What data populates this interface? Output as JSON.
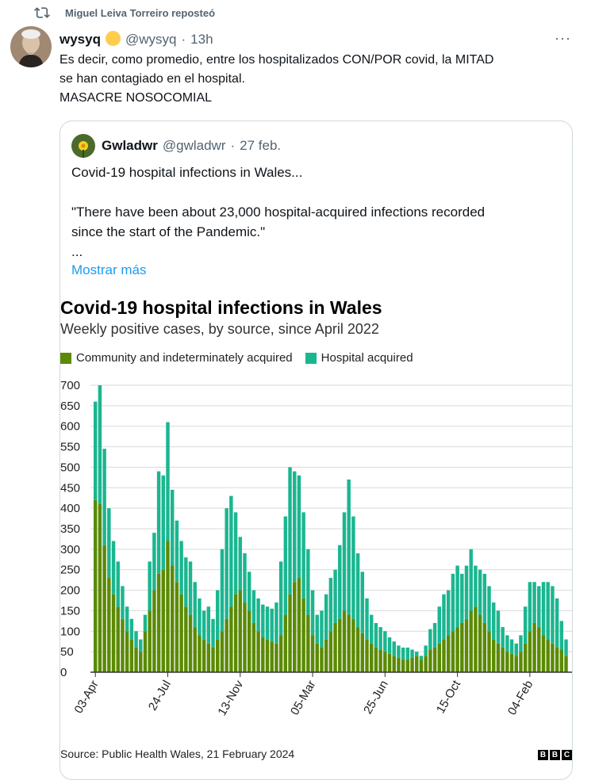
{
  "repost": {
    "text": "Miguel Leiva Torreiro reposteó"
  },
  "tweet": {
    "display_name": "wysyq",
    "handle": "@wysyq",
    "dot": "·",
    "time": "13h",
    "more": "···",
    "lines": [
      "Es decir, como promedio, entre los hospitalizados CON/POR covid, la MITAD",
      "se han contagiado en el hospital.",
      "MASACRE NOSOCOMIAL"
    ]
  },
  "quote": {
    "display_name": "Gwladwr",
    "handle": "@gwladwr",
    "dot": "·",
    "time": "27 feb.",
    "p1": "Covid-19 hospital infections in Wales...",
    "p2_line1": "\"There have been about 23,000 hospital-acquired infections recorded",
    "p2_line2": "since the start of the Pandemic.\"",
    "ellipsis": "...",
    "show_more": "Mostrar más"
  },
  "colors": {
    "community": "#5b8a04",
    "hospital": "#1ab690",
    "link": "#1d9bf0"
  },
  "chart_data": {
    "type": "bar",
    "stacked": true,
    "title": "Covid-19 hospital infections in Wales",
    "subtitle": "Weekly positive cases, by source, since April 2022",
    "legend": [
      "Community and indeterminately acquired",
      "Hospital acquired"
    ],
    "y_ticks": [
      0,
      50,
      100,
      150,
      200,
      250,
      300,
      350,
      400,
      450,
      500,
      550,
      600,
      650,
      700
    ],
    "ylim": [
      0,
      700
    ],
    "x_tick_labels": [
      "03-Apr",
      "24-Jul",
      "13-Nov",
      "05-Mar",
      "25-Jun",
      "15-Oct",
      "04-Feb"
    ],
    "x_tick_indices": [
      0,
      16,
      32,
      48,
      64,
      80,
      96
    ],
    "source": "Source: Public Health Wales, 21 February 2024",
    "credit": "BBC",
    "series": [
      {
        "name": "Community and indeterminately acquired",
        "values": [
          420,
          410,
          310,
          230,
          190,
          160,
          130,
          100,
          80,
          60,
          50,
          100,
          150,
          200,
          240,
          250,
          320,
          260,
          220,
          190,
          160,
          140,
          110,
          90,
          80,
          70,
          60,
          80,
          100,
          130,
          160,
          190,
          200,
          170,
          150,
          120,
          100,
          85,
          80,
          75,
          70,
          90,
          140,
          190,
          220,
          230,
          180,
          140,
          90,
          70,
          60,
          80,
          100,
          120,
          130,
          150,
          140,
          130,
          110,
          95,
          80,
          70,
          60,
          55,
          50,
          45,
          40,
          35,
          30,
          30,
          35,
          40,
          30,
          40,
          55,
          60,
          70,
          80,
          90,
          100,
          110,
          120,
          130,
          150,
          160,
          140,
          120,
          100,
          80,
          70,
          60,
          50,
          45,
          40,
          50,
          70,
          100,
          120,
          110,
          90,
          80,
          70,
          60,
          55,
          40
        ],
        "_note": "approximate"
      },
      {
        "name": "Hospital acquired",
        "values": [
          240,
          290,
          235,
          170,
          130,
          110,
          80,
          60,
          50,
          40,
          30,
          40,
          120,
          140,
          250,
          230,
          290,
          185,
          150,
          130,
          120,
          130,
          110,
          90,
          70,
          90,
          70,
          120,
          200,
          270,
          270,
          200,
          130,
          120,
          95,
          80,
          80,
          80,
          80,
          80,
          100,
          180,
          240,
          310,
          270,
          250,
          210,
          160,
          110,
          70,
          90,
          110,
          130,
          130,
          180,
          240,
          330,
          250,
          180,
          150,
          100,
          70,
          60,
          55,
          50,
          40,
          35,
          30,
          30,
          30,
          20,
          10,
          10,
          25,
          50,
          60,
          90,
          110,
          110,
          140,
          150,
          120,
          130,
          150,
          100,
          110,
          120,
          110,
          90,
          80,
          50,
          40,
          35,
          30,
          40,
          90,
          120,
          100,
          100,
          130,
          140,
          140,
          120,
          70,
          40
        ],
        "_note": "approximate"
      }
    ]
  }
}
